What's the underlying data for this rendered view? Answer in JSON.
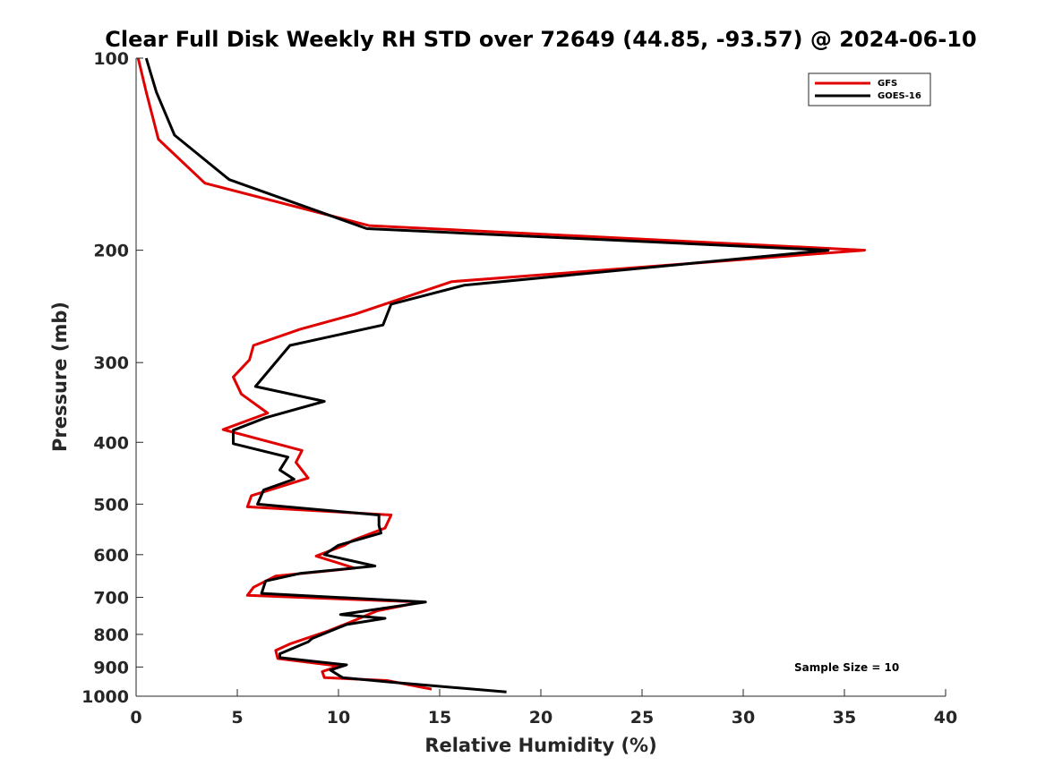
{
  "chart_data": {
    "type": "line",
    "title": "Clear Full Disk Weekly RH STD over 72649 (44.85, -93.57) @ 2024-06-10",
    "xlabel": "Relative Humidity (%)",
    "ylabel": "Pressure (mb)",
    "xlim": [
      0,
      40
    ],
    "ylim": [
      1000,
      100
    ],
    "y_scale": "log",
    "y_reversed": true,
    "grid": false,
    "legend_position": "top-right",
    "x_ticks": [
      0,
      5,
      10,
      15,
      20,
      25,
      30,
      35,
      40
    ],
    "y_ticks": [
      100,
      200,
      300,
      400,
      500,
      600,
      700,
      800,
      900,
      1000
    ],
    "annotation": "Sample Size = 10",
    "series": [
      {
        "name": "GFS",
        "color": "#e00000",
        "points": [
          [
            0.1,
            100
          ],
          [
            0.5,
            113
          ],
          [
            1.1,
            134
          ],
          [
            3.4,
            157
          ],
          [
            11.5,
            183
          ],
          [
            36.0,
            200
          ],
          [
            15.6,
            224
          ],
          [
            10.8,
            252
          ],
          [
            8.1,
            266
          ],
          [
            5.8,
            282
          ],
          [
            5.6,
            297
          ],
          [
            4.8,
            316
          ],
          [
            5.2,
            336
          ],
          [
            6.5,
            360
          ],
          [
            4.3,
            382
          ],
          [
            8.2,
            412
          ],
          [
            7.9,
            430
          ],
          [
            8.5,
            455
          ],
          [
            5.7,
            485
          ],
          [
            5.5,
            505
          ],
          [
            12.6,
            520
          ],
          [
            12.3,
            545
          ],
          [
            10.7,
            570
          ],
          [
            10.3,
            580
          ],
          [
            8.9,
            603
          ],
          [
            10.8,
            630
          ],
          [
            6.9,
            648
          ],
          [
            5.8,
            675
          ],
          [
            5.5,
            695
          ],
          [
            14.1,
            712
          ],
          [
            11.9,
            735
          ],
          [
            10.6,
            765
          ],
          [
            9.5,
            790
          ],
          [
            7.6,
            828
          ],
          [
            6.9,
            848
          ],
          [
            7.0,
            873
          ],
          [
            10.0,
            897
          ],
          [
            9.2,
            915
          ],
          [
            9.3,
            935
          ],
          [
            12.4,
            945
          ],
          [
            14.6,
            975
          ]
        ]
      },
      {
        "name": "GOES-16",
        "color": "#000000",
        "points": [
          [
            0.5,
            100
          ],
          [
            1.0,
            113
          ],
          [
            1.9,
            132
          ],
          [
            4.6,
            155
          ],
          [
            11.4,
            185
          ],
          [
            34.2,
            200
          ],
          [
            16.2,
            227
          ],
          [
            12.6,
            243
          ],
          [
            12.2,
            262
          ],
          [
            7.6,
            282
          ],
          [
            5.9,
            327
          ],
          [
            9.3,
            345
          ],
          [
            6.4,
            366
          ],
          [
            4.8,
            383
          ],
          [
            4.8,
            402
          ],
          [
            7.5,
            422
          ],
          [
            7.1,
            442
          ],
          [
            7.8,
            457
          ],
          [
            6.3,
            475
          ],
          [
            6.0,
            500
          ],
          [
            12.0,
            520
          ],
          [
            12.0,
            540
          ],
          [
            12.1,
            555
          ],
          [
            10.0,
            580
          ],
          [
            9.3,
            600
          ],
          [
            11.8,
            625
          ],
          [
            8.1,
            642
          ],
          [
            6.4,
            660
          ],
          [
            6.2,
            690
          ],
          [
            14.3,
            712
          ],
          [
            10.1,
            745
          ],
          [
            12.3,
            755
          ],
          [
            10.4,
            772
          ],
          [
            8.7,
            812
          ],
          [
            8.5,
            822
          ],
          [
            7.1,
            858
          ],
          [
            7.1,
            870
          ],
          [
            10.4,
            893
          ],
          [
            9.6,
            910
          ],
          [
            10.2,
            935
          ],
          [
            12.5,
            950
          ],
          [
            18.3,
            985
          ]
        ]
      }
    ]
  },
  "legend": {
    "items": [
      "GFS",
      "GOES-16"
    ]
  }
}
